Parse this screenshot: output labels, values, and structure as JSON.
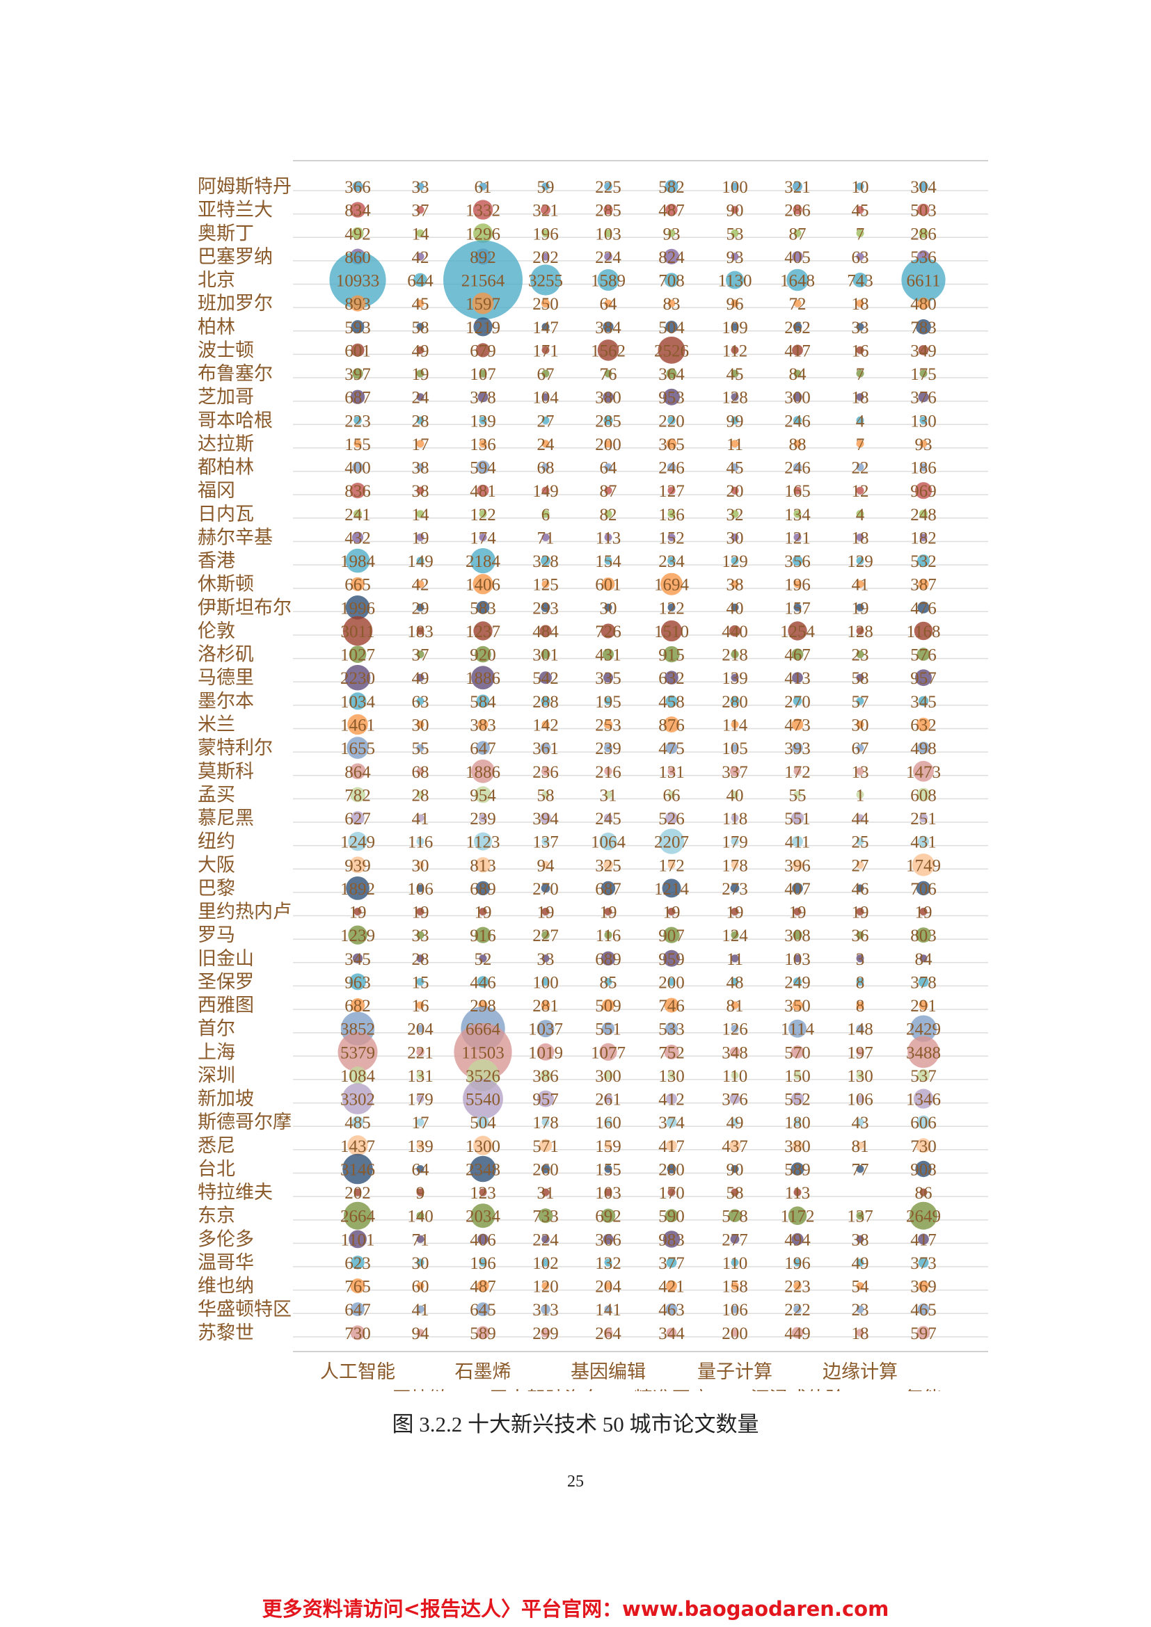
{
  "chart_data": {
    "type": "scatter",
    "title": "",
    "categories": [
      "人工智能",
      "区块链",
      "石墨烯",
      "无人驾驶汽车",
      "基因编辑",
      "精准医疗",
      "量子计算",
      "沉浸式体验",
      "边缘计算",
      "氢能"
    ],
    "cities": [
      "阿姆斯特丹",
      "亚特兰大",
      "奥斯丁",
      "巴塞罗纳",
      "北京",
      "班加罗尔",
      "柏林",
      "波士顿",
      "布鲁塞尔",
      "芝加哥",
      "哥本哈根",
      "达拉斯",
      "都柏林",
      "福冈",
      "日内瓦",
      "赫尔辛基",
      "香港",
      "休斯顿",
      "伊斯坦布尔",
      "伦敦",
      "洛杉矶",
      "马德里",
      "墨尔本",
      "米兰",
      "蒙特利尔",
      "莫斯科",
      "孟买",
      "慕尼黑",
      "纽约",
      "大阪",
      "巴黎",
      "里约热内卢",
      "罗马",
      "旧金山",
      "圣保罗",
      "西雅图",
      "首尔",
      "上海",
      "深圳",
      "新加坡",
      "斯德哥尔摩",
      "悉尼",
      "台北",
      "特拉维夫",
      "东京",
      "多伦多",
      "温哥华",
      "维也纳",
      "华盛顿特区",
      "苏黎世"
    ],
    "values": [
      [
        366,
        33,
        61,
        59,
        225,
        582,
        100,
        321,
        10,
        304
      ],
      [
        834,
        37,
        1332,
        321,
        285,
        487,
        90,
        286,
        45,
        503
      ],
      [
        492,
        14,
        1296,
        196,
        103,
        93,
        53,
        87,
        7,
        286
      ],
      [
        860,
        42,
        892,
        202,
        224,
        824,
        93,
        405,
        63,
        536
      ],
      [
        10933,
        644,
        21564,
        3255,
        1589,
        708,
        1130,
        1648,
        743,
        6611
      ],
      [
        893,
        45,
        1597,
        250,
        64,
        83,
        96,
        72,
        18,
        480
      ],
      [
        593,
        58,
        1219,
        147,
        384,
        504,
        109,
        262,
        33,
        783
      ],
      [
        601,
        49,
        679,
        171,
        1562,
        2526,
        112,
        417,
        16,
        349
      ],
      [
        397,
        19,
        107,
        67,
        76,
        364,
        45,
        84,
        7,
        175
      ],
      [
        687,
        24,
        378,
        104,
        380,
        953,
        128,
        300,
        18,
        376
      ],
      [
        223,
        28,
        139,
        27,
        285,
        220,
        99,
        246,
        4,
        130
      ],
      [
        155,
        17,
        136,
        24,
        200,
        365,
        11,
        88,
        7,
        93
      ],
      [
        400,
        38,
        594,
        68,
        64,
        246,
        45,
        246,
        22,
        186
      ],
      [
        836,
        38,
        481,
        149,
        87,
        127,
        20,
        165,
        12,
        969
      ],
      [
        241,
        14,
        122,
        6,
        82,
        136,
        32,
        134,
        4,
        248
      ],
      [
        432,
        19,
        174,
        71,
        113,
        152,
        30,
        121,
        18,
        182
      ],
      [
        1984,
        149,
        2184,
        328,
        154,
        234,
        129,
        356,
        129,
        532
      ],
      [
        665,
        42,
        1406,
        125,
        601,
        1694,
        38,
        196,
        41,
        387
      ],
      [
        1996,
        29,
        583,
        293,
        30,
        122,
        40,
        157,
        19,
        476
      ],
      [
        3011,
        183,
        1237,
        484,
        726,
        1510,
        440,
        1254,
        128,
        1168
      ],
      [
        1027,
        37,
        920,
        301,
        431,
        915,
        218,
        467,
        23,
        576
      ],
      [
        2230,
        49,
        1886,
        542,
        335,
        632,
        139,
        413,
        58,
        957
      ],
      [
        1034,
        63,
        584,
        288,
        195,
        458,
        280,
        270,
        57,
        345
      ],
      [
        1461,
        30,
        383,
        142,
        253,
        876,
        114,
        473,
        30,
        632
      ],
      [
        1655,
        55,
        647,
        361,
        239,
        475,
        105,
        393,
        67,
        498
      ],
      [
        864,
        68,
        1886,
        236,
        216,
        131,
        337,
        172,
        13,
        1473
      ],
      [
        782,
        28,
        954,
        58,
        31,
        66,
        40,
        55,
        1,
        608
      ],
      [
        627,
        41,
        239,
        394,
        245,
        526,
        118,
        551,
        44,
        251
      ],
      [
        1249,
        116,
        1123,
        137,
        1064,
        2207,
        179,
        411,
        25,
        431
      ],
      [
        939,
        30,
        813,
        94,
        325,
        172,
        178,
        396,
        27,
        1749
      ],
      [
        1892,
        106,
        689,
        270,
        687,
        1214,
        273,
        407,
        46,
        706
      ],
      [
        19,
        19,
        19,
        19,
        19,
        19,
        19,
        19,
        19,
        19
      ],
      [
        1239,
        33,
        916,
        227,
        116,
        907,
        124,
        308,
        36,
        803
      ],
      [
        345,
        28,
        52,
        33,
        689,
        959,
        11,
        103,
        3,
        84
      ],
      [
        963,
        15,
        446,
        100,
        85,
        200,
        48,
        249,
        8,
        378
      ],
      [
        682,
        16,
        298,
        281,
        509,
        746,
        81,
        350,
        8,
        291
      ],
      [
        3852,
        204,
        6664,
        1037,
        551,
        533,
        126,
        1114,
        148,
        2429
      ],
      [
        5379,
        221,
        11503,
        1019,
        1077,
        752,
        348,
        570,
        197,
        3488
      ],
      [
        1084,
        131,
        3526,
        386,
        300,
        130,
        110,
        150,
        130,
        537
      ],
      [
        3302,
        179,
        5540,
        957,
        261,
        412,
        376,
        552,
        106,
        1346
      ],
      [
        485,
        17,
        504,
        178,
        160,
        374,
        49,
        180,
        43,
        606
      ],
      [
        1437,
        139,
        1300,
        571,
        159,
        417,
        437,
        380,
        81,
        730
      ],
      [
        3146,
        64,
        2348,
        260,
        155,
        280,
        90,
        589,
        77,
        908
      ],
      [
        202,
        9,
        123,
        31,
        103,
        170,
        58,
        113,
        null,
        86
      ],
      [
        2664,
        140,
        2034,
        733,
        692,
        590,
        578,
        1172,
        137,
        2649
      ],
      [
        1101,
        71,
        406,
        224,
        366,
        983,
        277,
        494,
        38,
        417
      ],
      [
        623,
        30,
        196,
        102,
        132,
        377,
        110,
        196,
        49,
        373
      ],
      [
        765,
        60,
        487,
        120,
        204,
        421,
        158,
        223,
        54,
        369
      ],
      [
        647,
        41,
        645,
        313,
        141,
        463,
        106,
        222,
        23,
        465
      ],
      [
        730,
        94,
        589,
        299,
        264,
        344,
        200,
        449,
        18,
        597
      ]
    ],
    "row_colors": [
      "#4a9fc4",
      "#c0504d",
      "#9bbb59",
      "#8064a2",
      "#4bacc6",
      "#f79646",
      "#2c4d75",
      "#9c3d2a",
      "#77933c",
      "#5f497a",
      "#4bacc6",
      "#f79646",
      "#7f9fc7",
      "#c0504d",
      "#9bbb59",
      "#8064a2",
      "#4bacc6",
      "#f79646",
      "#2c4d75",
      "#9c3d2a",
      "#77933c",
      "#5f497a",
      "#4bacc6",
      "#f79646",
      "#7f9fc7",
      "#d99694",
      "#c3d69b",
      "#b3a2c7",
      "#93cddd",
      "#fac090",
      "#2c4d75",
      "#9c3d2a",
      "#77933c",
      "#5f497a",
      "#4bacc6",
      "#f79646",
      "#7f9fc7",
      "#d99694",
      "#c3d69b",
      "#b3a2c7",
      "#93cddd",
      "#fac090",
      "#2c4d75",
      "#9c3d2a",
      "#77933c",
      "#5f497a",
      "#4bacc6",
      "#f79646",
      "#7f9fc7",
      "#d99694"
    ],
    "label_color": "#8b5a2b"
  },
  "caption": "图 3.2.2 十大新兴技术 50 城市论文数量",
  "page_number": "25",
  "footer": "更多资料请访问<报告达人〉平台官网：www.baogaodaren.com"
}
